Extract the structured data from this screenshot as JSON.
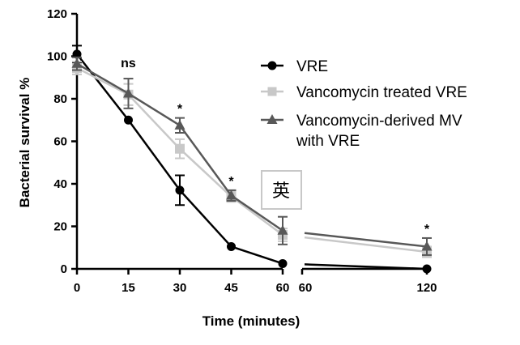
{
  "chart_data": {
    "type": "line",
    "xlabel": "Time (minutes)",
    "ylabel": "Bacterial survival %",
    "ylim": [
      0,
      120
    ],
    "y_ticks": [
      "0",
      "20",
      "40",
      "60",
      "80",
      "100",
      "120"
    ],
    "x_ticks_left": [
      "0",
      "15",
      "30",
      "45",
      "60"
    ],
    "x_ticks_right": [
      "60",
      "120"
    ],
    "axis_break": "between 60 and 120 minutes",
    "grid": false,
    "legend_position": "right",
    "series": [
      {
        "name": "VRE",
        "marker": "circle",
        "color": "#000000",
        "x": [
          0,
          15,
          30,
          45,
          60,
          120
        ],
        "y": [
          101,
          70,
          37,
          10.5,
          2.5,
          0
        ],
        "err": [
          4,
          0,
          7,
          0,
          0,
          0
        ]
      },
      {
        "name": "Vancomycin treated VRE",
        "marker": "square",
        "color": "#c8c8c8",
        "x": [
          0,
          15,
          30,
          45,
          60,
          120
        ],
        "y": [
          94.5,
          82,
          56.5,
          34,
          16,
          8
        ],
        "err": [
          3,
          5,
          4.5,
          2.5,
          3,
          2.5
        ]
      },
      {
        "name": "Vancomycin-derived MV with VRE",
        "marker": "triangle",
        "color": "#585858",
        "x": [
          0,
          15,
          30,
          45,
          60,
          120
        ],
        "y": [
          96.5,
          82.5,
          67.5,
          34.5,
          18,
          10.5
        ],
        "err": [
          3,
          7,
          3.5,
          2.5,
          6.5,
          4
        ]
      }
    ],
    "annotations": [
      {
        "x": 15,
        "text": "ns"
      },
      {
        "x": 30,
        "text": "*"
      },
      {
        "x": 45,
        "text": "*"
      },
      {
        "x": 120,
        "text": "*"
      }
    ]
  },
  "legend": {
    "items": [
      {
        "label_lines": [
          "VRE"
        ]
      },
      {
        "label_lines": [
          "Vancomycin treated VRE"
        ]
      },
      {
        "label_lines": [
          "Vancomycin-derived MV",
          "with VRE"
        ]
      }
    ]
  },
  "watermark": {
    "text": "英"
  }
}
